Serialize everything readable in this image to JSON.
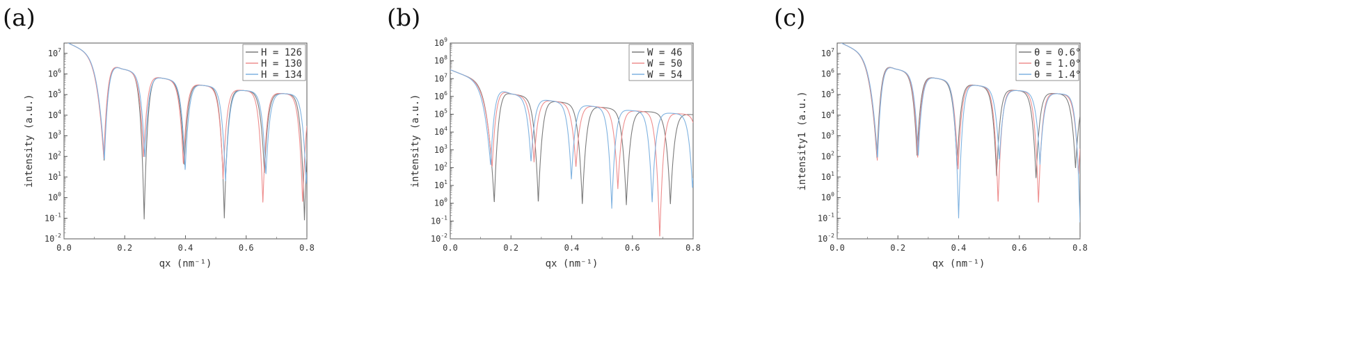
{
  "panels": [
    {
      "label": "(a)"
    },
    {
      "label": "(b)"
    },
    {
      "label": "(c)"
    }
  ],
  "chart_data": [
    {
      "type": "line",
      "panel": "(a)",
      "xlabel": "qx (nm⁻¹)",
      "ylabel": "intensity (a.u.)",
      "xlim": [
        0,
        0.8
      ],
      "ylim_exp": [
        -2,
        7.5
      ],
      "y_scale": "log",
      "xticks": [
        "0.0",
        "0.2",
        "0.4",
        "0.6",
        "0.8"
      ],
      "yticks": [
        {
          "base": "10",
          "exp": "-2"
        },
        {
          "base": "10",
          "exp": "-1"
        },
        {
          "base": "10",
          "exp": "0"
        },
        {
          "base": "10",
          "exp": "1"
        },
        {
          "base": "10",
          "exp": "2"
        },
        {
          "base": "10",
          "exp": "3"
        },
        {
          "base": "10",
          "exp": "4"
        },
        {
          "base": "10",
          "exp": "5"
        },
        {
          "base": "10",
          "exp": "6"
        },
        {
          "base": "10",
          "exp": "7"
        }
      ],
      "legend_position": "top-right",
      "series": [
        {
          "name": "H = 126",
          "color": "#7a7a7a",
          "minima_x": [
            0.132,
            0.264,
            0.396,
            0.528,
            0.66,
            0.792
          ],
          "minima_log": [
            1.8,
            -1.05,
            1.6,
            -1.0,
            1.2,
            -1.1
          ]
        },
        {
          "name": "H = 130",
          "color": "#ee8d8d",
          "minima_x": [
            0.131,
            0.262,
            0.393,
            0.524,
            0.655,
            0.786
          ],
          "minima_log": [
            1.9,
            1.9,
            1.6,
            0.9,
            -0.3,
            -0.3
          ]
        },
        {
          "name": "H = 134",
          "color": "#7fb2e0",
          "minima_x": [
            0.133,
            0.266,
            0.399,
            0.532,
            0.665,
            0.798
          ],
          "minima_log": [
            1.8,
            1.9,
            1.3,
            0.8,
            1.1,
            0.6
          ]
        }
      ],
      "peaks": [
        {
          "x": 0.0,
          "log": 7.6
        },
        {
          "x": 0.19,
          "log": 6.25
        },
        {
          "x": 0.322,
          "log": 5.8
        },
        {
          "x": 0.455,
          "log": 5.45
        },
        {
          "x": 0.588,
          "log": 5.2
        },
        {
          "x": 0.72,
          "log": 5.05
        }
      ]
    },
    {
      "type": "line",
      "panel": "(b)",
      "xlabel": "qx (nm⁻¹)",
      "ylabel": "intensity (a.u.)",
      "xlim": [
        0,
        0.8
      ],
      "ylim_exp": [
        -2,
        9
      ],
      "y_scale": "log",
      "xticks": [
        "0.0",
        "0.2",
        "0.4",
        "0.6",
        "0.8"
      ],
      "yticks": [
        {
          "base": "10",
          "exp": "-2"
        },
        {
          "base": "10",
          "exp": "-1"
        },
        {
          "base": "10",
          "exp": "0"
        },
        {
          "base": "10",
          "exp": "1"
        },
        {
          "base": "10",
          "exp": "2"
        },
        {
          "base": "10",
          "exp": "3"
        },
        {
          "base": "10",
          "exp": "4"
        },
        {
          "base": "10",
          "exp": "5"
        },
        {
          "base": "10",
          "exp": "6"
        },
        {
          "base": "10",
          "exp": "7"
        },
        {
          "base": "10",
          "exp": "8"
        },
        {
          "base": "10",
          "exp": "9"
        }
      ],
      "legend_position": "top-right",
      "series": [
        {
          "name": "W = 46",
          "color": "#7a7a7a",
          "minima_x": [
            0.145,
            0.29,
            0.435,
            0.58,
            0.725
          ],
          "minima_log": [
            0.0,
            0.0,
            -0.1,
            -0.1,
            -0.1
          ]
        },
        {
          "name": "W = 50",
          "color": "#ee8d8d",
          "minima_x": [
            0.138,
            0.276,
            0.414,
            0.552,
            0.69
          ],
          "minima_log": [
            2.0,
            2.3,
            2.0,
            0.8,
            -2.0
          ]
        },
        {
          "name": "W = 54",
          "color": "#7fb2e0",
          "minima_x": [
            0.133,
            0.266,
            0.399,
            0.532,
            0.665,
            0.798
          ],
          "minima_log": [
            2.1,
            2.3,
            1.3,
            -0.3,
            0.0,
            0.8
          ]
        }
      ],
      "peaks": [
        {
          "x": 0.0,
          "log": 7.5
        },
        {
          "x": 0.2,
          "log": 6.15
        },
        {
          "x": 0.333,
          "log": 5.75
        },
        {
          "x": 0.466,
          "log": 5.45
        },
        {
          "x": 0.6,
          "log": 5.2
        },
        {
          "x": 0.733,
          "log": 5.05
        }
      ]
    },
    {
      "type": "line",
      "panel": "(c)",
      "xlabel": "qx (nm⁻¹)",
      "ylabel": "intensity1 (a.u.)",
      "xlim": [
        0,
        0.8
      ],
      "ylim_exp": [
        -2,
        7.5
      ],
      "y_scale": "log",
      "xticks": [
        "0.0",
        "0.2",
        "0.4",
        "0.6",
        "0.8"
      ],
      "yticks": [
        {
          "base": "10",
          "exp": "-2"
        },
        {
          "base": "10",
          "exp": "-1"
        },
        {
          "base": "10",
          "exp": "0"
        },
        {
          "base": "10",
          "exp": "1"
        },
        {
          "base": "10",
          "exp": "2"
        },
        {
          "base": "10",
          "exp": "3"
        },
        {
          "base": "10",
          "exp": "4"
        },
        {
          "base": "10",
          "exp": "5"
        },
        {
          "base": "10",
          "exp": "6"
        },
        {
          "base": "10",
          "exp": "7"
        }
      ],
      "legend_position": "top-right",
      "series": [
        {
          "name": "θ = 0.6°",
          "color": "#7a7a7a",
          "minima_x": [
            0.131,
            0.263,
            0.395,
            0.525,
            0.655,
            0.785
          ],
          "minima_log": [
            1.9,
            2.0,
            1.5,
            1.0,
            0.9,
            1.4
          ]
        },
        {
          "name": "θ = 1.0°",
          "color": "#ee8d8d",
          "minima_x": [
            0.132,
            0.265,
            0.398,
            0.53,
            0.663,
            0.795
          ],
          "minima_log": [
            1.8,
            1.9,
            1.3,
            -0.3,
            -0.3,
            1.1
          ]
        },
        {
          "name": "θ = 1.4°",
          "color": "#7fb2e0",
          "minima_x": [
            0.133,
            0.267,
            0.4,
            0.534,
            0.668,
            0.8
          ],
          "minima_log": [
            1.9,
            2.0,
            -1.0,
            1.8,
            1.6,
            -1.2
          ]
        }
      ],
      "peaks": [
        {
          "x": 0.0,
          "log": 7.6
        },
        {
          "x": 0.19,
          "log": 6.25
        },
        {
          "x": 0.322,
          "log": 5.8
        },
        {
          "x": 0.455,
          "log": 5.45
        },
        {
          "x": 0.588,
          "log": 5.2
        },
        {
          "x": 0.72,
          "log": 5.05
        }
      ]
    }
  ]
}
